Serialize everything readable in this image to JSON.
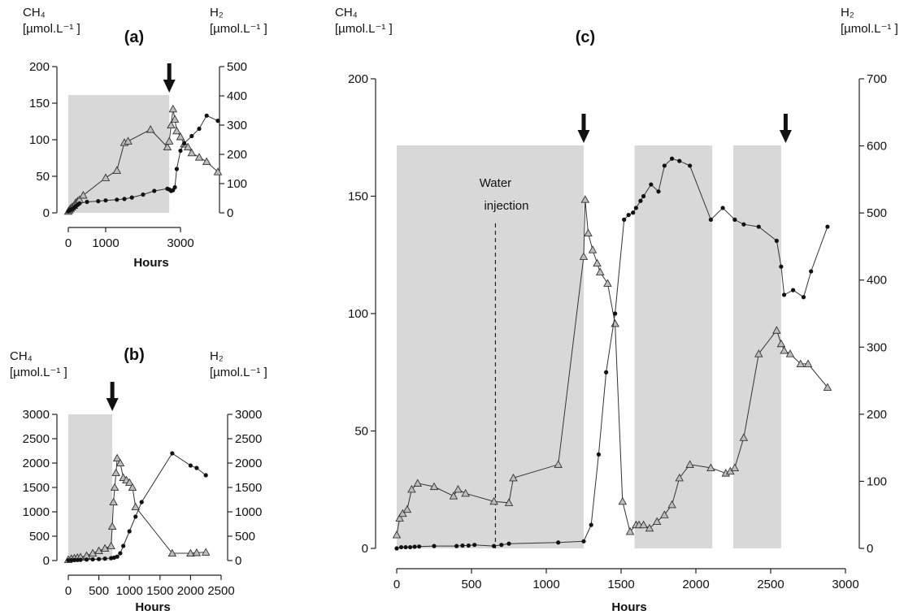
{
  "chart_data": [
    {
      "type": "line",
      "panel_label": "(a)",
      "xlabel": "Hours",
      "ylabel_left": "CH₄ [µmol.L⁻¹ ]",
      "ylabel_right": "H₂ [µmol.L⁻¹ ]",
      "left_unit": "[µmol.L⁻¹ ]",
      "right_unit": "[µmol.L⁻¹ ]",
      "xlim": [
        0,
        4000
      ],
      "xticks": [
        0,
        1000,
        3000
      ],
      "ylim_left": [
        0,
        200
      ],
      "yticks_left": [
        0,
        50,
        100,
        150,
        200
      ],
      "ylim_right": [
        0,
        500
      ],
      "yticks_right": [
        0,
        100,
        200,
        300,
        400,
        500
      ],
      "shaded": [
        [
          0,
          2700
        ]
      ],
      "arrows": [
        2700
      ],
      "series": [
        {
          "axis": "right",
          "marker": "triangle",
          "x": [
            0,
            30,
            60,
            100,
            150,
            200,
            250,
            300,
            400,
            1000,
            1300,
            1500,
            1600,
            2200,
            2650,
            2700,
            2750,
            2800,
            2850,
            2900,
            3000,
            3100,
            3200,
            3300,
            3500,
            3700,
            4000
          ],
          "y": [
            5,
            10,
            15,
            20,
            25,
            35,
            40,
            45,
            60,
            120,
            145,
            240,
            245,
            285,
            225,
            245,
            300,
            355,
            320,
            280,
            260,
            235,
            225,
            205,
            190,
            175,
            140
          ]
        },
        {
          "axis": "left",
          "marker": "circle",
          "x": [
            0,
            30,
            60,
            100,
            150,
            200,
            250,
            300,
            500,
            800,
            1000,
            1300,
            1500,
            1700,
            2000,
            2300,
            2650,
            2700,
            2750,
            2800,
            2850,
            2900,
            3000,
            3100,
            3300,
            3500,
            3700,
            4000
          ],
          "y": [
            2,
            3,
            4,
            5,
            7,
            9,
            11,
            13,
            15,
            16,
            17,
            18,
            19,
            21,
            25,
            30,
            33,
            32,
            30,
            31,
            35,
            60,
            85,
            95,
            105,
            115,
            133,
            126
          ]
        }
      ]
    },
    {
      "type": "line",
      "panel_label": "(b)",
      "xlabel": "Hours",
      "ylabel_left": "CH₄ [µmol.L⁻¹ ]",
      "ylabel_right": "H₂ [µmol.L⁻¹ ]",
      "left_unit": "[µmol.L⁻¹ ]",
      "right_unit": "[µmol.L⁻¹ ]",
      "xlim": [
        0,
        2500
      ],
      "xticks": [
        0,
        500,
        1000,
        1500,
        2000,
        2500
      ],
      "ylim_left": [
        0,
        3000
      ],
      "yticks_left": [
        0,
        500,
        1000,
        1500,
        2000,
        2500,
        3000
      ],
      "ylim_right": [
        0,
        3000
      ],
      "yticks_right": [
        0,
        500,
        1000,
        1500,
        2000,
        2500,
        3000
      ],
      "shaded": [
        [
          0,
          720
        ]
      ],
      "arrows": [
        720
      ],
      "series": [
        {
          "axis": "right",
          "marker": "triangle",
          "x": [
            0,
            50,
            100,
            150,
            200,
            300,
            400,
            500,
            600,
            700,
            720,
            740,
            760,
            780,
            800,
            850,
            900,
            950,
            1000,
            1050,
            1100,
            1700,
            2000,
            2100,
            2250
          ],
          "y": [
            20,
            40,
            50,
            60,
            70,
            100,
            150,
            200,
            250,
            300,
            700,
            1200,
            1500,
            1800,
            2100,
            2000,
            1700,
            1650,
            1600,
            1500,
            1100,
            150,
            150,
            160,
            170
          ]
        },
        {
          "axis": "left",
          "marker": "circle",
          "x": [
            0,
            50,
            100,
            150,
            200,
            300,
            400,
            500,
            600,
            700,
            750,
            800,
            850,
            900,
            1000,
            1100,
            1200,
            1700,
            2000,
            2100,
            2250
          ],
          "y": [
            5,
            8,
            10,
            12,
            15,
            20,
            25,
            30,
            40,
            50,
            60,
            80,
            150,
            300,
            600,
            900,
            1200,
            2200,
            1950,
            1900,
            1750
          ]
        }
      ]
    },
    {
      "type": "line",
      "panel_label": "(c)",
      "xlabel": "Hours",
      "ylabel_left": "CH₄ [µmol.L⁻¹ ]",
      "ylabel_right": "H₂ [µmol.L⁻¹ ]",
      "left_unit": "[µmol.L⁻¹ ]",
      "right_unit": "[µmol.L⁻¹ ]",
      "xlim": [
        0,
        3000
      ],
      "xticks": [
        0,
        500,
        1000,
        1500,
        2000,
        2500,
        3000
      ],
      "ylim_left": [
        0,
        200
      ],
      "yticks_left": [
        0,
        50,
        100,
        150,
        200
      ],
      "ylim_right": [
        0,
        700
      ],
      "yticks_right": [
        0,
        100,
        200,
        300,
        400,
        500,
        600,
        700
      ],
      "shaded": [
        [
          0,
          1250
        ],
        [
          1590,
          2110
        ],
        [
          2250,
          2570
        ]
      ],
      "arrows": [
        1250,
        2600
      ],
      "annotation": {
        "text_line1": "Water",
        "text_line2": "injection",
        "x": 660
      },
      "series": [
        {
          "axis": "right",
          "marker": "triangle",
          "x": [
            0,
            20,
            40,
            70,
            100,
            140,
            250,
            380,
            410,
            460,
            650,
            750,
            780,
            1080,
            1250,
            1260,
            1280,
            1310,
            1340,
            1360,
            1410,
            1460,
            1510,
            1560,
            1600,
            1620,
            1650,
            1690,
            1740,
            1790,
            1840,
            1890,
            1960,
            2100,
            2200,
            2230,
            2260,
            2320,
            2420,
            2540,
            2570,
            2590,
            2630,
            2700,
            2750,
            2880
          ],
          "y": [
            20,
            45,
            52,
            58,
            88,
            97,
            92,
            78,
            88,
            82,
            70,
            68,
            105,
            125,
            435,
            520,
            470,
            445,
            425,
            412,
            395,
            335,
            70,
            25,
            35,
            35,
            35,
            30,
            40,
            50,
            65,
            105,
            125,
            120,
            112,
            115,
            120,
            165,
            290,
            325,
            305,
            295,
            290,
            275,
            275,
            240
          ]
        },
        {
          "axis": "left",
          "marker": "circle",
          "x": [
            0,
            30,
            60,
            90,
            120,
            150,
            250,
            400,
            440,
            480,
            520,
            650,
            700,
            750,
            1080,
            1250,
            1300,
            1350,
            1400,
            1460,
            1520,
            1550,
            1580,
            1600,
            1630,
            1650,
            1700,
            1750,
            1790,
            1840,
            1890,
            1960,
            2100,
            2180,
            2260,
            2320,
            2420,
            2540,
            2570,
            2590,
            2650,
            2720,
            2770,
            2880
          ],
          "y": [
            0,
            0.5,
            0.5,
            0.5,
            0.7,
            0.8,
            1,
            1,
            1.2,
            1.2,
            1.5,
            1,
            1.5,
            2,
            2.5,
            3,
            10,
            40,
            75,
            100,
            140,
            142,
            143,
            145,
            148,
            150,
            155,
            152,
            163,
            166,
            165,
            163,
            140,
            145,
            140,
            138,
            137,
            131,
            120,
            108,
            110,
            107,
            118,
            137
          ]
        }
      ]
    }
  ]
}
